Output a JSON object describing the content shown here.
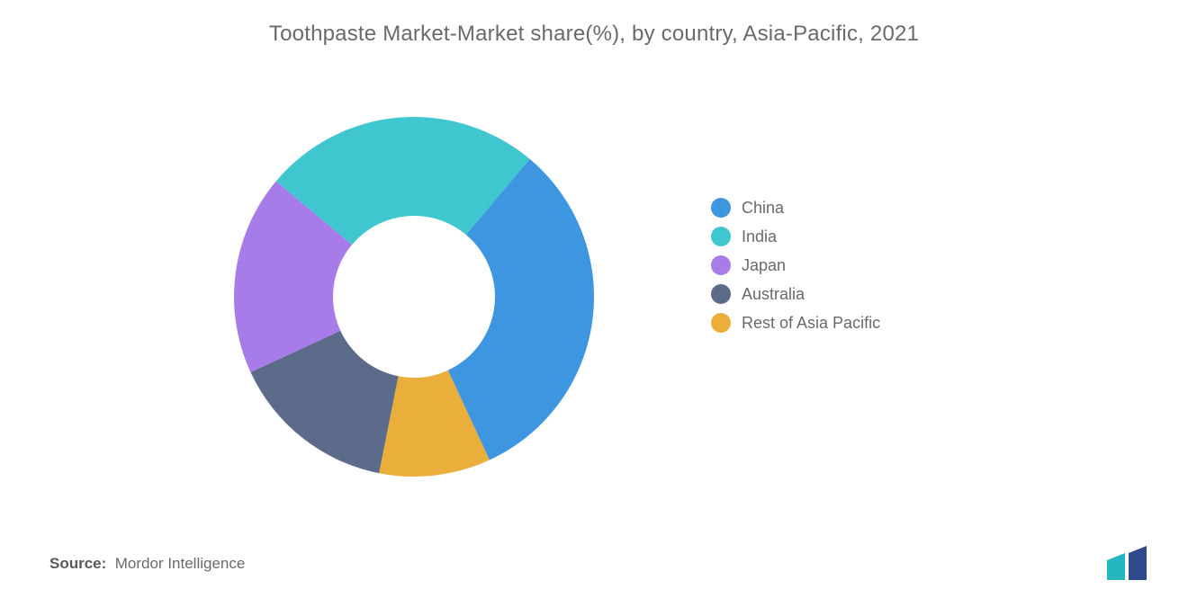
{
  "title": "Toothpaste Market-Market share(%), by country, Asia-Pacific, 2021",
  "source_label": "Source:",
  "source_value": "Mordor Intelligence",
  "chart": {
    "type": "donut",
    "inner_radius_ratio": 0.45,
    "background_color": "#ffffff",
    "start_angle_deg": 130,
    "direction": "clockwise",
    "title_fontsize": 24,
    "legend_fontsize": 18,
    "legend_text_color": "#6a6a6a",
    "slices": [
      {
        "label": "China",
        "value": 32,
        "color": "#3e95e0"
      },
      {
        "label": "India",
        "value": 25,
        "color": "#3fc6cf"
      },
      {
        "label": "Japan",
        "value": 18,
        "color": "#a77ce8"
      },
      {
        "label": "Australia",
        "value": 15,
        "color": "#5c6b8a"
      },
      {
        "label": "Rest of Asia Pacific",
        "value": 10,
        "color": "#eaae3a"
      }
    ]
  },
  "logo": {
    "bar1_color": "#26b6c0",
    "bar2_color": "#2f4a8a"
  }
}
